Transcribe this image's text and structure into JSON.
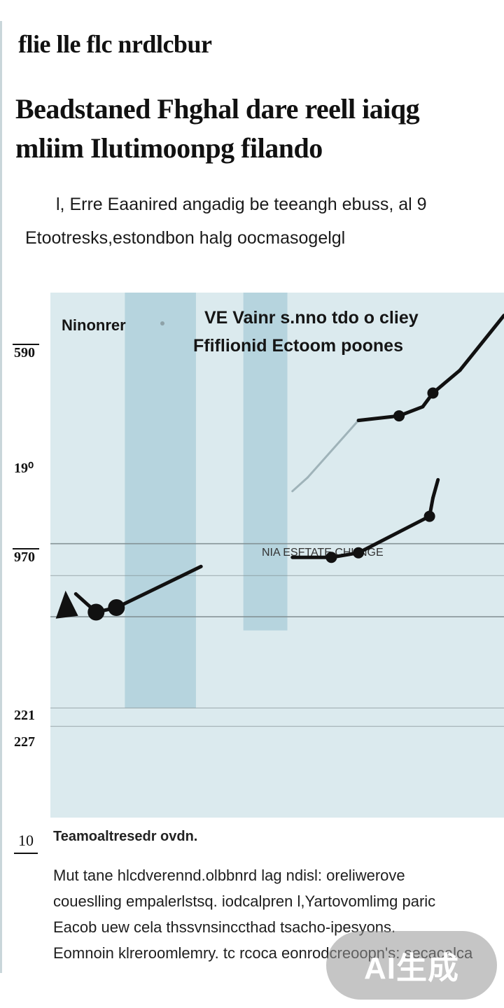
{
  "header": {
    "kicker": "flie lle  flc nrdlcbur",
    "headline_line1": "Beadstaned  Fhghal  dare reell iaiqg",
    "headline_line2": "mliim  Ilutimoonpg  filando",
    "deck_line1": "l, Erre Eaanired angadig be teeangh ebuss, al 9",
    "deck_line2": "Etootresks,estondbon  halg oocmasogelgl"
  },
  "chart_data": {
    "type": "line",
    "title": "",
    "legend": [
      "Ninonrer",
      "VE Vainr s.nno tdo o cliey",
      "Ffiflionid Ectoom poones"
    ],
    "annotation": "NIA ESFTATE CHUNGE",
    "yticks": [
      "590",
      "19⁰",
      "970",
      "221",
      "227"
    ],
    "footer_tick": "10",
    "ylim": [
      0,
      10
    ],
    "grid_y": [
      6.0,
      5.3,
      4.4,
      2.4,
      2.0
    ],
    "shaded_bands": [
      {
        "x0": 2.2,
        "x1": 4.3,
        "y_bottom": 2.4
      },
      {
        "x0": 5.7,
        "x1": 7.0,
        "y_bottom": 4.1
      }
    ],
    "series": [
      {
        "values": [
          [
            0.75,
            4.9
          ],
          [
            1.35,
            4.5
          ],
          [
            1.95,
            4.6
          ],
          [
            4.45,
            5.5
          ]
        ],
        "markers": [
          1,
          2
        ],
        "dashed_tail": false
      },
      {
        "values": [
          [
            7.15,
            7.15
          ],
          [
            7.6,
            7.45
          ],
          [
            9.1,
            8.7
          ],
          [
            10.3,
            8.8
          ],
          [
            11.0,
            9.0
          ],
          [
            11.3,
            9.3
          ],
          [
            12.1,
            9.8
          ],
          [
            13.4,
            11.0
          ]
        ],
        "markers": [
          3,
          5
        ],
        "faded_segments": [
          [
            0,
            2
          ]
        ]
      },
      {
        "values": [
          [
            7.15,
            5.7
          ],
          [
            8.3,
            5.7
          ],
          [
            9.1,
            5.8
          ],
          [
            11.2,
            6.6
          ],
          [
            11.3,
            7.0
          ],
          [
            11.45,
            7.4
          ]
        ],
        "markers": [
          1,
          2,
          3
        ],
        "faded_segments": []
      }
    ],
    "colors": {
      "line": "#111111",
      "band": "#a9ccd8",
      "plot_bg": "#dbeaee",
      "grid": "#7e8b8e"
    }
  },
  "footer": {
    "source": "Teamoaltresedr ovdn.",
    "body_line1": "Mut tane hlcdverennd.olbbnrd lag ndisl: oreliwerove",
    "body_line2": "coueslling  empalerlstsq. iodcalpren l,Yartovomlimg paric",
    "body_line3": "Eacob uew  cela  thssvnsinccthad  tsacho-ipesyons.",
    "body_line4": "Eomnoin klreroomlemry. tc rcoca eonrodcreoopn's: secacalca"
  },
  "watermark": {
    "text": "AI生成"
  }
}
